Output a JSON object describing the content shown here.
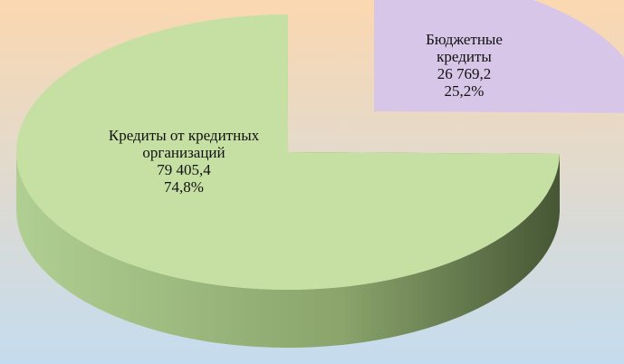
{
  "chart_data": {
    "type": "pie3d",
    "categories": [
      "Кредиты от кредитных организаций",
      "Бюджетные кредиты"
    ],
    "values": [
      79405.4,
      26769.2
    ],
    "value_labels": [
      "79 405,4",
      "26 769,2"
    ],
    "percents": [
      74.8,
      25.2
    ],
    "percent_labels": [
      "74,8%",
      "25,2%"
    ],
    "colors": [
      "#c6e0a4",
      "#d8c6e8"
    ],
    "exploded": [
      false,
      true
    ]
  }
}
